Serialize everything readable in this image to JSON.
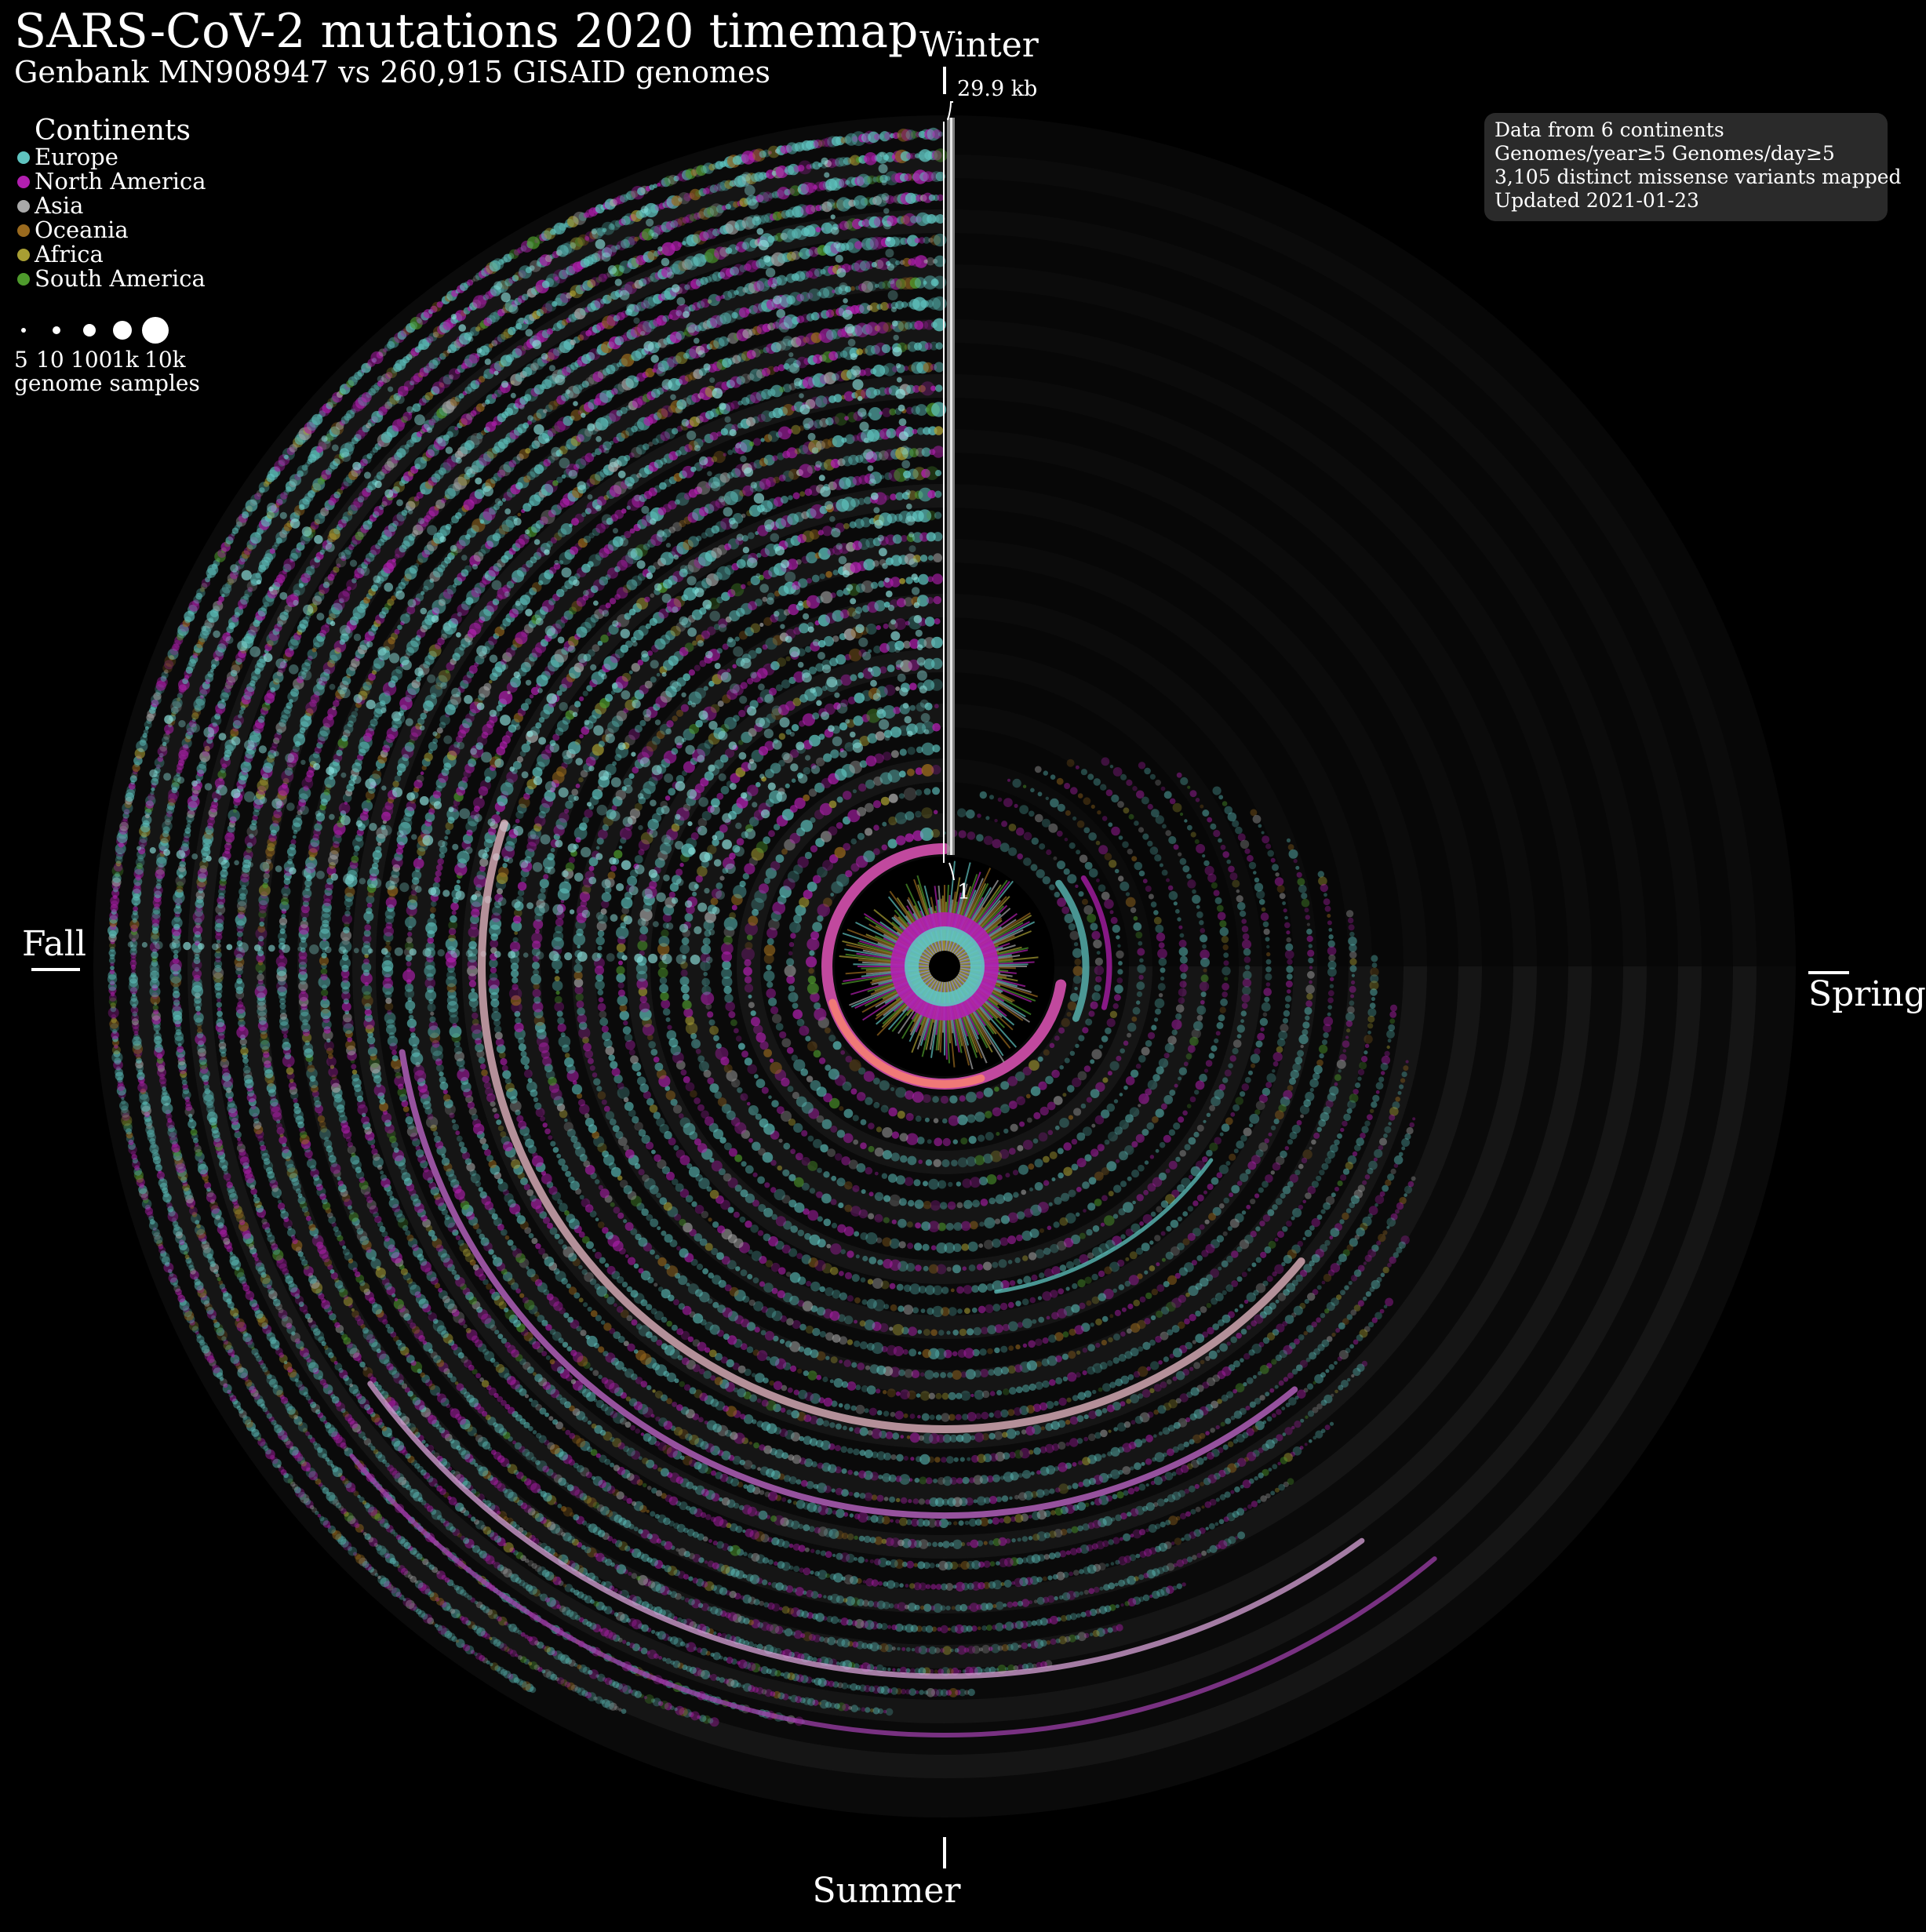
{
  "chart_data": {
    "type": "scatter",
    "subtype": "radial-timemap",
    "title": "SARS-CoV-2 mutations 2020 timemap",
    "subtitle": "Genbank MN908947 vs 260,915 GISAID genomes",
    "legend_title": "Continents",
    "series": [
      {
        "name": "Europe",
        "color": "#5fc4c0"
      },
      {
        "name": "North America",
        "color": "#b21fb0"
      },
      {
        "name": "Asia",
        "color": "#a9a9a9"
      },
      {
        "name": "Oceania",
        "color": "#9a6a1e"
      },
      {
        "name": "Africa",
        "color": "#a89e33"
      },
      {
        "name": "South America",
        "color": "#4e9a2c"
      }
    ],
    "size_legend": {
      "values": [
        "5",
        "10",
        "100",
        "1k",
        "10k"
      ],
      "caption": "genome samples"
    },
    "seasons": {
      "top": "Winter",
      "right": "Spring",
      "bottom": "Summer",
      "left": "Fall"
    },
    "genome_axis": {
      "end_label": "29.9 kb",
      "start_label": "1"
    },
    "info_box": [
      "Data from 6 continents",
      "Genomes/year≥5 Genomes/day≥5",
      "3,105 distinct missense variants mapped",
      "Updated 2021-01-23"
    ],
    "grid": false,
    "legend_position": "top-left"
  }
}
